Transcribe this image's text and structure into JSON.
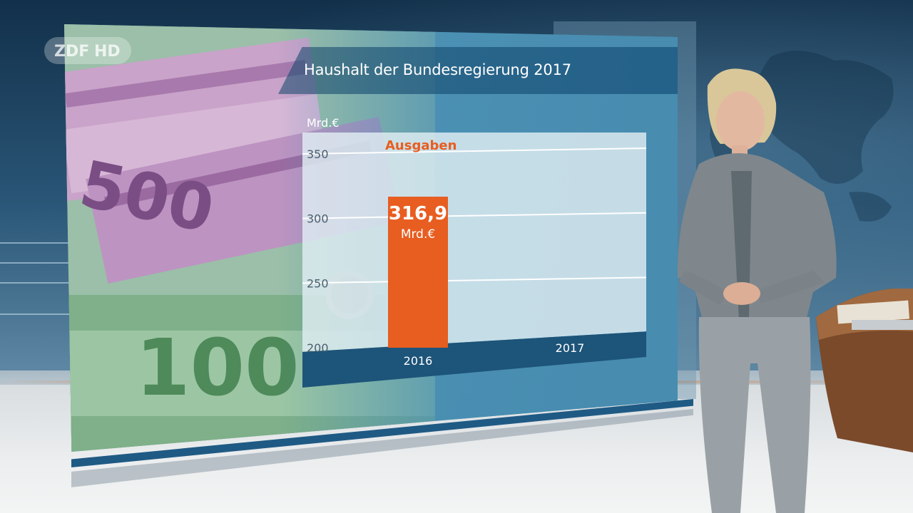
{
  "broadcaster": {
    "logo_text": "ZDF HD"
  },
  "graphic": {
    "title": "Haushalt der Bundesregierung 2017",
    "unit": "Mrd.€",
    "series_label": "Ausgaben"
  },
  "chart_data": {
    "type": "bar",
    "title": "Haushalt der Bundesregierung 2017",
    "ylabel": "Mrd.€",
    "xlabel": "",
    "categories": [
      "2016",
      "2017"
    ],
    "series": [
      {
        "name": "Ausgaben",
        "values": [
          316.9,
          null
        ]
      }
    ],
    "data_labels": [
      {
        "category": "2016",
        "value": "316,9",
        "unit": "Mrd.€"
      }
    ],
    "y_ticks": [
      "200",
      "250",
      "300",
      "350"
    ],
    "ylim": [
      200,
      360
    ],
    "grid": true,
    "colors": {
      "bar": "#e85d20",
      "series_label": "#e85d20",
      "panel": "#4a8fb2"
    }
  }
}
